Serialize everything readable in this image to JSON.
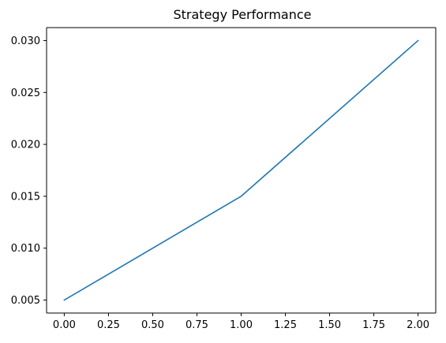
{
  "chart_data": {
    "type": "line",
    "title": "Strategy Performance",
    "xlabel": "",
    "ylabel": "",
    "xlim": [
      -0.1,
      2.1
    ],
    "ylim": [
      0.00375,
      0.03125
    ],
    "x_ticks": [
      0.0,
      0.25,
      0.5,
      0.75,
      1.0,
      1.25,
      1.5,
      1.75,
      2.0
    ],
    "x_tick_labels": [
      "0.00",
      "0.25",
      "0.50",
      "0.75",
      "1.00",
      "1.25",
      "1.50",
      "1.75",
      "2.00"
    ],
    "y_ticks": [
      0.005,
      0.01,
      0.015,
      0.02,
      0.025,
      0.03
    ],
    "y_tick_labels": [
      "0.005",
      "0.010",
      "0.015",
      "0.020",
      "0.025",
      "0.030"
    ],
    "grid": false,
    "legend": "none",
    "series": [
      {
        "x": [
          0,
          1,
          2
        ],
        "values": [
          0.005,
          0.015,
          0.03
        ],
        "color": "#1f77b4"
      }
    ]
  }
}
